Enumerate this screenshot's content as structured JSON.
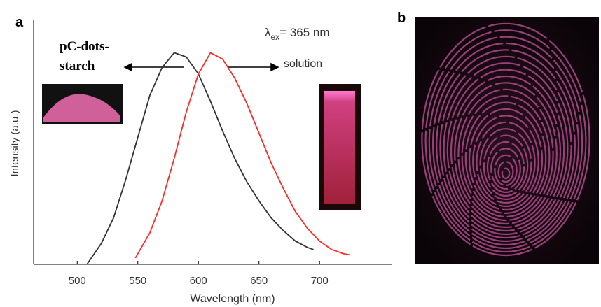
{
  "chart_data": {
    "type": "line",
    "panel_labels": [
      "a",
      "b"
    ],
    "xlabel": "Wavelength (nm)",
    "ylabel": "Intensity (a.u.)",
    "annotations": {
      "sample_lines": [
        "pC-dots-",
        "starch"
      ],
      "excitation": [
        "λ",
        "ex",
        "= 365 nm"
      ],
      "solution": "solution"
    },
    "xlim": [
      464,
      760
    ],
    "ylim": [
      0,
      1.15
    ],
    "xticks": [
      500,
      550,
      600,
      650,
      700
    ],
    "series": [
      {
        "color": "#333333",
        "x": [
          508,
          520,
          530,
          540,
          550,
          560,
          570,
          580,
          590,
          600,
          610,
          620,
          630,
          640,
          650,
          660,
          670,
          680,
          690,
          695
        ],
        "values": [
          0,
          0.1,
          0.22,
          0.4,
          0.6,
          0.8,
          0.93,
          1.0,
          0.98,
          0.9,
          0.77,
          0.63,
          0.5,
          0.39,
          0.3,
          0.22,
          0.16,
          0.11,
          0.08,
          0.07
        ]
      },
      {
        "color": "#ff2a2a",
        "x": [
          548,
          560,
          570,
          580,
          590,
          600,
          610,
          620,
          630,
          640,
          650,
          660,
          670,
          680,
          690,
          700,
          710,
          720,
          725
        ],
        "values": [
          0.03,
          0.15,
          0.3,
          0.5,
          0.72,
          0.9,
          1.0,
          0.97,
          0.88,
          0.76,
          0.62,
          0.48,
          0.36,
          0.25,
          0.17,
          0.11,
          0.07,
          0.05,
          0.045
        ]
      }
    ]
  }
}
